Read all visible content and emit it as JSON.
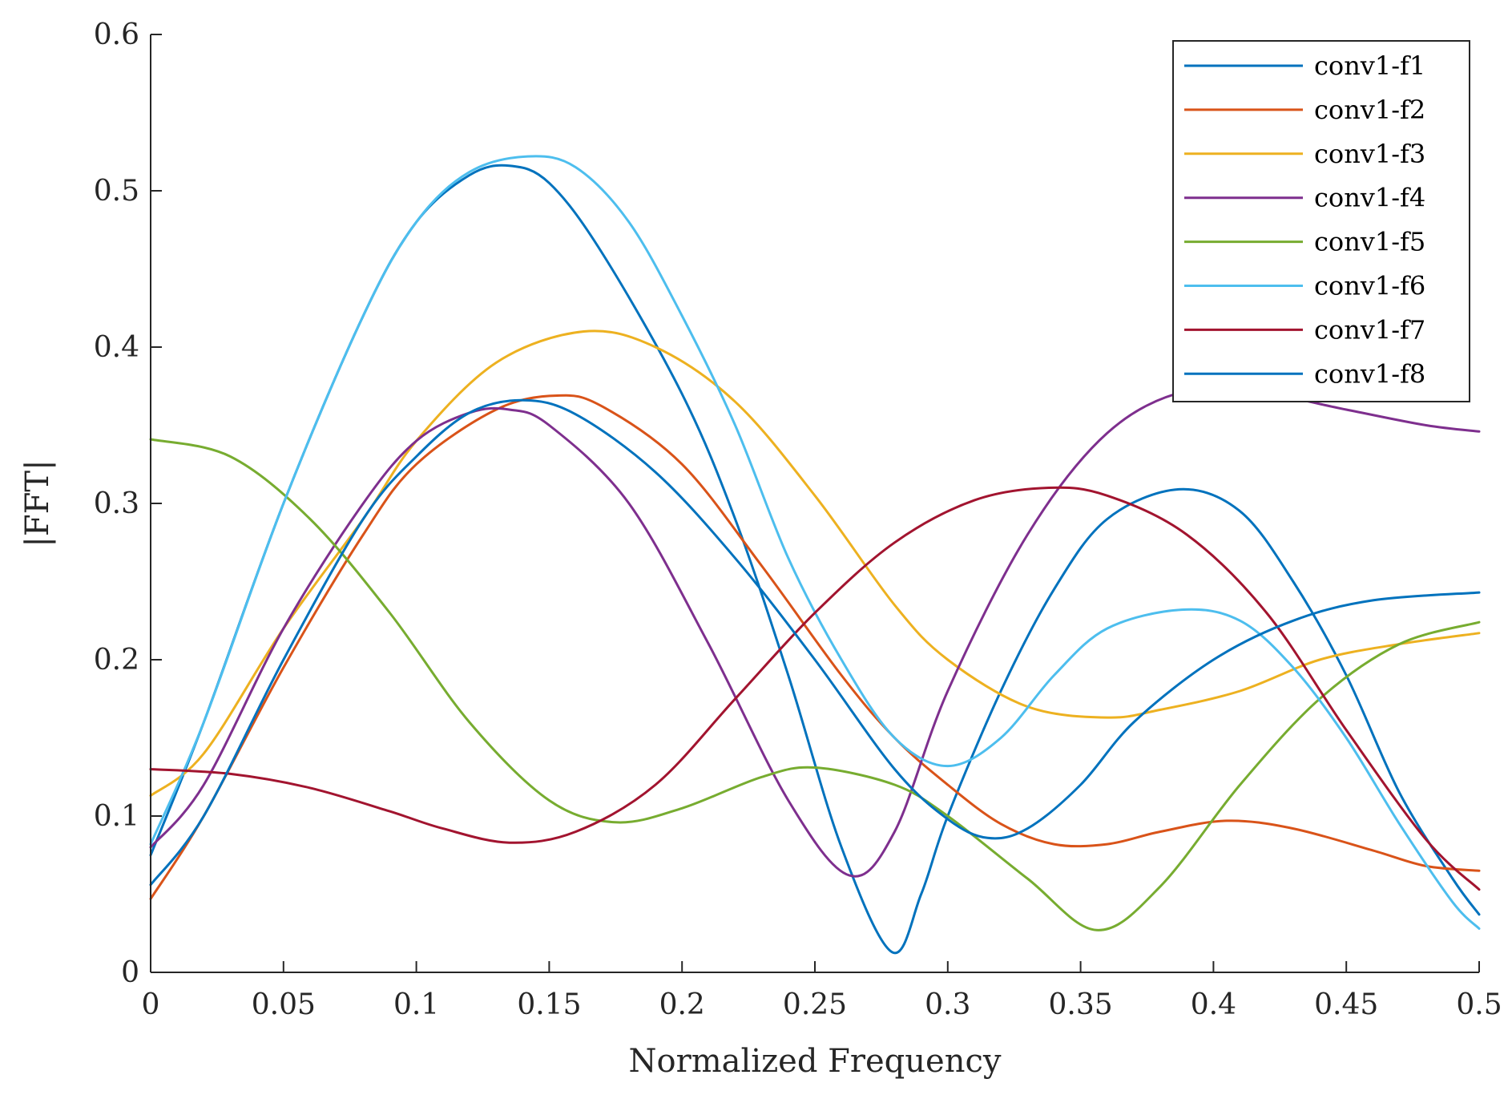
{
  "chart_data": {
    "type": "line",
    "xlabel": "Normalized Frequency",
    "ylabel": "|FFT|",
    "xlim": [
      0,
      0.5
    ],
    "ylim": [
      0,
      0.6
    ],
    "xticks": [
      0,
      0.05,
      0.1,
      0.15,
      0.2,
      0.25,
      0.3,
      0.35,
      0.4,
      0.45,
      0.5
    ],
    "xtick_labels": [
      "0",
      "0.05",
      "0.1",
      "0.15",
      "0.2",
      "0.25",
      "0.3",
      "0.35",
      "0.4",
      "0.45",
      "0.5"
    ],
    "yticks": [
      0,
      0.1,
      0.2,
      0.3,
      0.4,
      0.5,
      0.6
    ],
    "ytick_labels": [
      "0",
      "0.1",
      "0.2",
      "0.3",
      "0.4",
      "0.5",
      "0.6"
    ],
    "grid": false,
    "legend_position": "top-right",
    "series": [
      {
        "name": "conv1-f1",
        "color": "#0072BD",
        "points": [
          [
            0,
            0.075
          ],
          [
            0.02,
            0.16
          ],
          [
            0.05,
            0.3
          ],
          [
            0.08,
            0.42
          ],
          [
            0.1,
            0.48
          ],
          [
            0.12,
            0.51
          ],
          [
            0.135,
            0.516
          ],
          [
            0.15,
            0.505
          ],
          [
            0.17,
            0.46
          ],
          [
            0.2,
            0.37
          ],
          [
            0.22,
            0.29
          ],
          [
            0.24,
            0.19
          ],
          [
            0.26,
            0.08
          ],
          [
            0.279,
            0.013
          ],
          [
            0.29,
            0.05
          ],
          [
            0.3,
            0.1
          ],
          [
            0.32,
            0.18
          ],
          [
            0.34,
            0.245
          ],
          [
            0.36,
            0.29
          ],
          [
            0.387,
            0.309
          ],
          [
            0.41,
            0.295
          ],
          [
            0.43,
            0.25
          ],
          [
            0.45,
            0.19
          ],
          [
            0.47,
            0.115
          ],
          [
            0.49,
            0.06
          ],
          [
            0.5,
            0.037
          ]
        ]
      },
      {
        "name": "conv1-f2",
        "color": "#D95319",
        "points": [
          [
            0,
            0.047
          ],
          [
            0.02,
            0.1
          ],
          [
            0.05,
            0.195
          ],
          [
            0.08,
            0.28
          ],
          [
            0.1,
            0.325
          ],
          [
            0.13,
            0.36
          ],
          [
            0.153,
            0.369
          ],
          [
            0.17,
            0.362
          ],
          [
            0.2,
            0.325
          ],
          [
            0.23,
            0.26
          ],
          [
            0.26,
            0.19
          ],
          [
            0.28,
            0.15
          ],
          [
            0.3,
            0.12
          ],
          [
            0.32,
            0.095
          ],
          [
            0.34,
            0.082
          ],
          [
            0.36,
            0.082
          ],
          [
            0.38,
            0.09
          ],
          [
            0.405,
            0.097
          ],
          [
            0.43,
            0.092
          ],
          [
            0.46,
            0.078
          ],
          [
            0.48,
            0.068
          ],
          [
            0.5,
            0.065
          ]
        ]
      },
      {
        "name": "conv1-f3",
        "color": "#EDB120",
        "points": [
          [
            0,
            0.113
          ],
          [
            0.02,
            0.14
          ],
          [
            0.05,
            0.22
          ],
          [
            0.08,
            0.29
          ],
          [
            0.1,
            0.34
          ],
          [
            0.13,
            0.39
          ],
          [
            0.163,
            0.41
          ],
          [
            0.19,
            0.4
          ],
          [
            0.22,
            0.365
          ],
          [
            0.25,
            0.305
          ],
          [
            0.28,
            0.235
          ],
          [
            0.3,
            0.2
          ],
          [
            0.33,
            0.17
          ],
          [
            0.36,
            0.163
          ],
          [
            0.38,
            0.168
          ],
          [
            0.41,
            0.18
          ],
          [
            0.44,
            0.2
          ],
          [
            0.47,
            0.21
          ],
          [
            0.5,
            0.217
          ]
        ]
      },
      {
        "name": "conv1-f4",
        "color": "#7E2F8E",
        "points": [
          [
            0,
            0.08
          ],
          [
            0.02,
            0.12
          ],
          [
            0.05,
            0.22
          ],
          [
            0.08,
            0.3
          ],
          [
            0.1,
            0.34
          ],
          [
            0.12,
            0.358
          ],
          [
            0.135,
            0.36
          ],
          [
            0.15,
            0.35
          ],
          [
            0.18,
            0.3
          ],
          [
            0.21,
            0.21
          ],
          [
            0.24,
            0.11
          ],
          [
            0.263,
            0.062
          ],
          [
            0.28,
            0.09
          ],
          [
            0.3,
            0.18
          ],
          [
            0.33,
            0.28
          ],
          [
            0.36,
            0.345
          ],
          [
            0.39,
            0.372
          ],
          [
            0.42,
            0.37
          ],
          [
            0.45,
            0.36
          ],
          [
            0.48,
            0.35
          ],
          [
            0.5,
            0.346
          ]
        ]
      },
      {
        "name": "conv1-f5",
        "color": "#77AC30",
        "points": [
          [
            0,
            0.341
          ],
          [
            0.03,
            0.33
          ],
          [
            0.06,
            0.29
          ],
          [
            0.09,
            0.23
          ],
          [
            0.12,
            0.16
          ],
          [
            0.15,
            0.11
          ],
          [
            0.175,
            0.096
          ],
          [
            0.2,
            0.105
          ],
          [
            0.23,
            0.125
          ],
          [
            0.25,
            0.131
          ],
          [
            0.28,
            0.12
          ],
          [
            0.3,
            0.1
          ],
          [
            0.33,
            0.06
          ],
          [
            0.356,
            0.027
          ],
          [
            0.38,
            0.055
          ],
          [
            0.41,
            0.12
          ],
          [
            0.44,
            0.175
          ],
          [
            0.47,
            0.21
          ],
          [
            0.5,
            0.224
          ]
        ]
      },
      {
        "name": "conv1-f6",
        "color": "#4DBEEE",
        "points": [
          [
            0,
            0.082
          ],
          [
            0.02,
            0.16
          ],
          [
            0.05,
            0.3
          ],
          [
            0.08,
            0.42
          ],
          [
            0.1,
            0.48
          ],
          [
            0.12,
            0.512
          ],
          [
            0.142,
            0.522
          ],
          [
            0.16,
            0.515
          ],
          [
            0.18,
            0.48
          ],
          [
            0.2,
            0.42
          ],
          [
            0.22,
            0.35
          ],
          [
            0.24,
            0.265
          ],
          [
            0.26,
            0.2
          ],
          [
            0.28,
            0.15
          ],
          [
            0.3,
            0.132
          ],
          [
            0.32,
            0.15
          ],
          [
            0.34,
            0.19
          ],
          [
            0.36,
            0.22
          ],
          [
            0.388,
            0.232
          ],
          [
            0.41,
            0.225
          ],
          [
            0.43,
            0.195
          ],
          [
            0.45,
            0.15
          ],
          [
            0.47,
            0.095
          ],
          [
            0.49,
            0.045
          ],
          [
            0.5,
            0.028
          ]
        ]
      },
      {
        "name": "conv1-f7",
        "color": "#A2142F",
        "points": [
          [
            0,
            0.13
          ],
          [
            0.03,
            0.127
          ],
          [
            0.06,
            0.118
          ],
          [
            0.09,
            0.103
          ],
          [
            0.11,
            0.092
          ],
          [
            0.135,
            0.083
          ],
          [
            0.16,
            0.09
          ],
          [
            0.19,
            0.12
          ],
          [
            0.22,
            0.175
          ],
          [
            0.25,
            0.23
          ],
          [
            0.28,
            0.275
          ],
          [
            0.31,
            0.302
          ],
          [
            0.338,
            0.31
          ],
          [
            0.36,
            0.305
          ],
          [
            0.39,
            0.28
          ],
          [
            0.42,
            0.23
          ],
          [
            0.45,
            0.155
          ],
          [
            0.48,
            0.085
          ],
          [
            0.5,
            0.053
          ]
        ]
      },
      {
        "name": "conv1-f8",
        "color": "#0072BD",
        "points": [
          [
            0,
            0.056
          ],
          [
            0.02,
            0.1
          ],
          [
            0.05,
            0.2
          ],
          [
            0.08,
            0.29
          ],
          [
            0.1,
            0.33
          ],
          [
            0.12,
            0.358
          ],
          [
            0.14,
            0.366
          ],
          [
            0.16,
            0.357
          ],
          [
            0.19,
            0.32
          ],
          [
            0.22,
            0.265
          ],
          [
            0.25,
            0.2
          ],
          [
            0.28,
            0.13
          ],
          [
            0.3,
            0.098
          ],
          [
            0.315,
            0.086
          ],
          [
            0.33,
            0.092
          ],
          [
            0.35,
            0.12
          ],
          [
            0.37,
            0.16
          ],
          [
            0.4,
            0.2
          ],
          [
            0.43,
            0.225
          ],
          [
            0.46,
            0.238
          ],
          [
            0.5,
            0.243
          ]
        ]
      }
    ]
  }
}
